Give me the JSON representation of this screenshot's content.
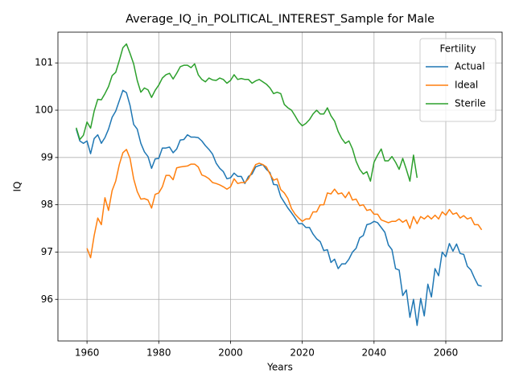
{
  "chart_data": {
    "type": "line",
    "title": "Average_IQ_in_POLITICAL_INTEREST_Sample for Male",
    "x_label": "Years",
    "y_label": "IQ",
    "legend_title": "Fertility",
    "legend": "upper right",
    "grid": true,
    "x": [
      1957,
      1958,
      1959,
      1960,
      1961,
      1962,
      1963,
      1964,
      1965,
      1966,
      1967,
      1968,
      1969,
      1970,
      1971,
      1972,
      1973,
      1974,
      1975,
      1976,
      1977,
      1978,
      1979,
      1980,
      1981,
      1982,
      1983,
      1984,
      1985,
      1986,
      1987,
      1988,
      1989,
      1990,
      1991,
      1992,
      1993,
      1994,
      1995,
      1996,
      1997,
      1998,
      1999,
      2000,
      2001,
      2002,
      2003,
      2004,
      2005,
      2006,
      2007,
      2008,
      2009,
      2010,
      2011,
      2012,
      2013,
      2014,
      2015,
      2016,
      2017,
      2018,
      2019,
      2020,
      2021,
      2022,
      2023,
      2024,
      2025,
      2026,
      2027,
      2028,
      2029,
      2030,
      2031,
      2032,
      2033,
      2034,
      2035,
      2036,
      2037,
      2038,
      2039,
      2040,
      2041,
      2042,
      2043,
      2044,
      2045,
      2046,
      2047,
      2048,
      2049,
      2050,
      2051,
      2052,
      2053,
      2054,
      2055,
      2056,
      2057,
      2058,
      2059,
      2060,
      2061,
      2062,
      2063,
      2064,
      2065,
      2066,
      2067,
      2068,
      2069,
      2070
    ],
    "series": [
      {
        "name": "Actual",
        "color": "#1f77b4",
        "values": [
          99.6,
          99.35,
          99.3,
          99.35,
          99.08,
          99.4,
          99.48,
          99.3,
          99.42,
          99.6,
          99.85,
          99.98,
          100.2,
          100.42,
          100.37,
          100.1,
          99.7,
          99.6,
          99.3,
          99.12,
          99.02,
          98.77,
          98.97,
          98.98,
          99.2,
          99.2,
          99.22,
          99.1,
          99.18,
          99.37,
          99.38,
          99.48,
          99.43,
          99.43,
          99.42,
          99.35,
          99.25,
          99.17,
          99.07,
          98.88,
          98.77,
          98.7,
          98.55,
          98.57,
          98.67,
          98.6,
          98.6,
          98.45,
          98.6,
          98.65,
          98.8,
          98.83,
          98.85,
          98.75,
          98.68,
          98.43,
          98.42,
          98.17,
          98.05,
          97.93,
          97.83,
          97.72,
          97.6,
          97.6,
          97.52,
          97.52,
          97.38,
          97.28,
          97.22,
          97.03,
          97.05,
          96.78,
          96.85,
          96.65,
          96.75,
          96.75,
          96.85,
          97.0,
          97.08,
          97.3,
          97.35,
          97.58,
          97.6,
          97.65,
          97.62,
          97.52,
          97.42,
          97.15,
          97.05,
          96.65,
          96.62,
          96.08,
          96.2,
          95.62,
          96.0,
          95.45,
          96.02,
          95.65,
          96.32,
          96.05,
          96.65,
          96.5,
          97.0,
          96.9,
          97.18,
          97.02,
          97.17,
          96.97,
          96.95,
          96.7,
          96.62,
          96.45,
          96.3,
          96.28
        ]
      },
      {
        "name": "Ideal",
        "color": "#ff7f0e",
        "values": [
          null,
          null,
          null,
          97.08,
          96.88,
          97.35,
          97.72,
          97.58,
          98.15,
          97.88,
          98.3,
          98.5,
          98.85,
          99.1,
          99.17,
          98.98,
          98.55,
          98.28,
          98.12,
          98.13,
          98.1,
          97.93,
          98.22,
          98.25,
          98.38,
          98.62,
          98.62,
          98.53,
          98.78,
          98.8,
          98.81,
          98.82,
          98.86,
          98.86,
          98.8,
          98.63,
          98.6,
          98.55,
          98.47,
          98.45,
          98.42,
          98.38,
          98.33,
          98.38,
          98.55,
          98.45,
          98.47,
          98.47,
          98.55,
          98.7,
          98.85,
          98.88,
          98.85,
          98.8,
          98.65,
          98.52,
          98.55,
          98.32,
          98.25,
          98.13,
          97.92,
          97.8,
          97.72,
          97.65,
          97.7,
          97.7,
          97.85,
          97.85,
          98.0,
          98.0,
          98.25,
          98.23,
          98.33,
          98.23,
          98.25,
          98.15,
          98.27,
          98.1,
          98.12,
          97.98,
          98.0,
          97.88,
          97.9,
          97.8,
          97.8,
          97.68,
          97.65,
          97.62,
          97.65,
          97.65,
          97.7,
          97.63,
          97.68,
          97.5,
          97.75,
          97.6,
          97.75,
          97.7,
          97.77,
          97.7,
          97.78,
          97.7,
          97.85,
          97.78,
          97.9,
          97.8,
          97.83,
          97.72,
          97.77,
          97.7,
          97.73,
          97.58,
          97.58,
          97.47
        ]
      },
      {
        "name": "Sterile",
        "color": "#2ca02c",
        "values": [
          99.63,
          99.38,
          99.47,
          99.75,
          99.62,
          99.98,
          100.23,
          100.22,
          100.35,
          100.5,
          100.73,
          100.8,
          101.05,
          101.32,
          101.4,
          101.2,
          100.98,
          100.63,
          100.38,
          100.47,
          100.43,
          100.27,
          100.42,
          100.53,
          100.68,
          100.75,
          100.78,
          100.66,
          100.78,
          100.92,
          100.95,
          100.95,
          100.9,
          100.98,
          100.75,
          100.65,
          100.6,
          100.68,
          100.64,
          100.63,
          100.68,
          100.65,
          100.57,
          100.63,
          100.75,
          100.65,
          100.67,
          100.65,
          100.65,
          100.57,
          100.62,
          100.65,
          100.6,
          100.55,
          100.47,
          100.35,
          100.38,
          100.35,
          100.12,
          100.05,
          100.0,
          99.88,
          99.75,
          99.67,
          99.72,
          99.8,
          99.92,
          100.0,
          99.92,
          99.92,
          100.05,
          99.88,
          99.77,
          99.55,
          99.4,
          99.3,
          99.35,
          99.18,
          98.92,
          98.75,
          98.65,
          98.7,
          98.5,
          98.9,
          99.05,
          99.18,
          98.93,
          98.93,
          99.02,
          98.9,
          98.75,
          98.98,
          98.75,
          98.5,
          99.05,
          98.57,
          null,
          null,
          null,
          null,
          null,
          null,
          null,
          null,
          null,
          null,
          null,
          null,
          null,
          null,
          null,
          null,
          null,
          null
        ]
      }
    ],
    "xlim": [
      1951.9,
      2075.7
    ],
    "xticks": [
      1960,
      1980,
      2000,
      2020,
      2040,
      2060
    ],
    "ylim": [
      95.12,
      101.65
    ],
    "yticks": [
      96,
      97,
      98,
      99,
      100,
      101
    ]
  }
}
